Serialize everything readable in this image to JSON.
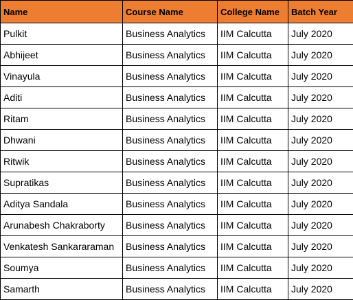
{
  "table": {
    "headers": [
      "Name",
      "Course Name",
      "College Name",
      "Batch Year"
    ],
    "rows": [
      [
        "Pulkit",
        "Business Analytics",
        "IIM Calcutta",
        "July 2020"
      ],
      [
        "Abhijeet",
        "Business Analytics",
        "IIM Calcutta",
        "July 2020"
      ],
      [
        "Vinayula",
        "Business Analytics",
        "IIM Calcutta",
        "July 2020"
      ],
      [
        "Aditi",
        "Business Analytics",
        "IIM Calcutta",
        "July 2020"
      ],
      [
        "Ritam",
        "Business Analytics",
        "IIM Calcutta",
        "July 2020"
      ],
      [
        "Dhwani",
        "Business Analytics",
        "IIM Calcutta",
        "July 2020"
      ],
      [
        "Ritwik",
        "Business Analytics",
        "IIM Calcutta",
        "July 2020"
      ],
      [
        "Supratikas",
        "Business Analytics",
        "IIM Calcutta",
        "July 2020"
      ],
      [
        "Aditya Sandala",
        "Business Analytics",
        "IIM Calcutta",
        "July 2020"
      ],
      [
        "Arunabesh Chakraborty",
        "Business Analytics",
        "IIM Calcutta",
        "July 2020"
      ],
      [
        "Venkatesh Sankararaman",
        "Business Analytics",
        "IIM Calcutta",
        "July 2020"
      ],
      [
        "Soumya",
        "Business Analytics",
        "IIM Calcutta",
        "July 2020"
      ],
      [
        "Samarth",
        "Business Analytics",
        "IIM Calcutta",
        "July 2020"
      ]
    ]
  },
  "colors": {
    "header_background": "#ed7d31",
    "grid_lines": "#000000",
    "cell_background": "#ffffff"
  }
}
